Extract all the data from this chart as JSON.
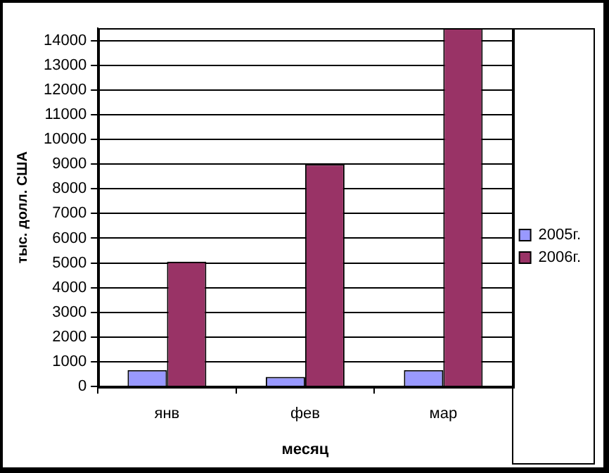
{
  "chart_data": {
    "type": "bar",
    "xlabel": "месяц",
    "ylabel": "тыс. долл. США",
    "categories": [
      "янв",
      "фев",
      "мар"
    ],
    "series": [
      {
        "name": "2005г.",
        "color": "#9999ff",
        "values": [
          670,
          390,
          670
        ]
      },
      {
        "name": "2006г.",
        "color": "#993366",
        "values": [
          5050,
          9000,
          14500
        ]
      }
    ],
    "ylim": [
      0,
      14500
    ],
    "yticks": [
      0,
      1000,
      2000,
      3000,
      4000,
      5000,
      6000,
      7000,
      8000,
      9000,
      10000,
      11000,
      12000,
      13000,
      14000
    ],
    "grid": "y",
    "legend": "right"
  }
}
